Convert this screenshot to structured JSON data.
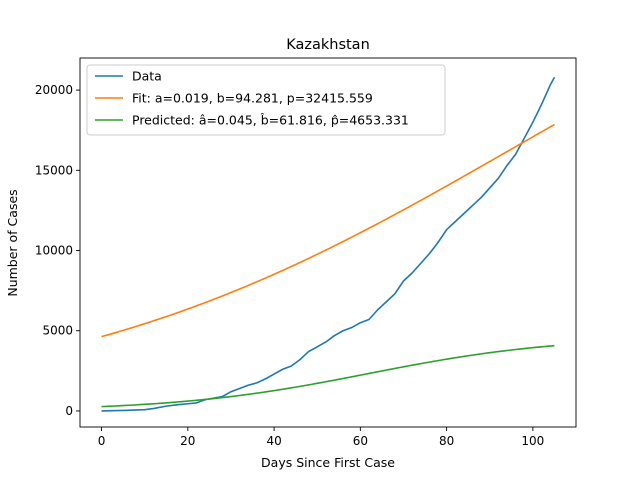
{
  "chart_data": {
    "type": "line",
    "title": "Kazakhstan",
    "xlabel": "Days Since First Case",
    "ylabel": "Number of Cases",
    "xlim": [
      -5,
      110
    ],
    "ylim": [
      -1000,
      22000
    ],
    "xticks": [
      0,
      20,
      40,
      60,
      80,
      100
    ],
    "yticks": [
      0,
      5000,
      10000,
      15000,
      20000
    ],
    "grid": false,
    "legend_position": "top-left",
    "series": [
      {
        "name": "Data",
        "color": "#1f77b4",
        "x": [
          0,
          5,
          10,
          12,
          15,
          18,
          20,
          22,
          24,
          26,
          28,
          30,
          32,
          34,
          36,
          38,
          40,
          42,
          44,
          46,
          48,
          50,
          52,
          54,
          56,
          58,
          60,
          62,
          64,
          66,
          68,
          70,
          72,
          74,
          76,
          78,
          80,
          82,
          84,
          86,
          88,
          90,
          92,
          94,
          96,
          98,
          100,
          102,
          104,
          105
        ],
        "y": [
          0,
          30,
          80,
          150,
          300,
          400,
          450,
          500,
          700,
          800,
          900,
          1200,
          1400,
          1600,
          1750,
          2000,
          2300,
          2600,
          2800,
          3200,
          3700,
          4000,
          4300,
          4700,
          5000,
          5200,
          5500,
          5700,
          6300,
          6800,
          7300,
          8100,
          8600,
          9200,
          9800,
          10500,
          11300,
          11800,
          12300,
          12800,
          13300,
          13900,
          14500,
          15300,
          16000,
          17000,
          18000,
          19100,
          20300,
          20800
        ]
      },
      {
        "name": "Fit: a=0.019, b=94.281, p=32415.559",
        "color": "#ff7f0e",
        "model": {
          "a": 0.019,
          "b": 94.281,
          "p": 32415.559
        },
        "x_range": [
          0,
          105
        ]
      },
      {
        "name": "Predicted: â=0.045, b̂=61.816, p̂=4653.331",
        "color": "#2ca02c",
        "model": {
          "a": 0.045,
          "b": 61.816,
          "p": 4653.331
        },
        "x_range": [
          0,
          105
        ]
      }
    ]
  }
}
